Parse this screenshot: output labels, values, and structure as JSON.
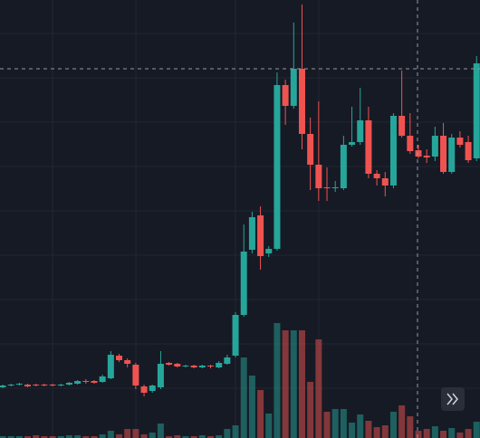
{
  "chart_data": {
    "type": "candlestick",
    "open": [
      56,
      58,
      59,
      59,
      59,
      59,
      59,
      58,
      59,
      60,
      63,
      63,
      62,
      66,
      91,
      86,
      81,
      57,
      52,
      56,
      83,
      82,
      79,
      80,
      78,
      80,
      78,
      82,
      91,
      136,
      208,
      246,
      204,
      209,
      390,
      367,
      408,
      336,
      302,
      277,
      276,
      276,
      324,
      327,
      351,
      292,
      287,
      279,
      356,
      334,
      318,
      312,
      311,
      334,
      294,
      332,
      327,
      309
    ],
    "high": [
      59,
      60,
      61,
      60,
      60,
      60,
      60,
      60,
      62,
      64,
      65,
      64,
      70,
      96,
      93,
      88,
      83,
      59,
      59,
      96,
      84,
      83,
      81,
      81,
      81,
      81,
      85,
      92,
      139,
      236,
      250,
      256,
      212,
      404,
      396,
      459,
      479,
      354,
      372,
      299,
      284,
      334,
      366,
      387,
      366,
      296,
      294,
      359,
      406,
      359,
      324,
      319,
      344,
      348,
      336,
      339,
      334,
      422
    ],
    "low": [
      55,
      57,
      58,
      56,
      57,
      57,
      57,
      57,
      58,
      59,
      60,
      60,
      61,
      65,
      84,
      78,
      54,
      46,
      50,
      54,
      80,
      78,
      78,
      77,
      77,
      77,
      77,
      81,
      89,
      134,
      204,
      186,
      200,
      207,
      346,
      364,
      319,
      274,
      262,
      262,
      272,
      274,
      322,
      324,
      287,
      279,
      267,
      276,
      332,
      314,
      309,
      304,
      306,
      292,
      292,
      321,
      304,
      306
    ],
    "close": [
      58,
      59,
      60,
      57,
      58,
      58,
      58,
      59,
      61,
      63,
      62,
      61,
      68,
      92,
      86,
      82,
      58,
      50,
      58,
      82,
      81,
      79,
      80,
      78,
      80,
      79,
      83,
      89,
      136,
      206,
      244,
      201,
      209,
      390,
      367,
      408,
      336,
      302,
      276,
      276,
      277,
      324,
      327,
      351,
      292,
      287,
      279,
      356,
      334,
      317,
      311,
      310,
      334,
      294,
      332,
      324,
      307,
      414
    ],
    "volume": [
      2,
      2,
      2,
      2,
      3,
      2,
      2,
      2,
      3,
      3,
      2,
      2,
      4,
      8,
      4,
      10,
      10,
      4,
      6,
      16,
      2,
      3,
      2,
      2,
      3,
      2,
      3,
      10,
      14,
      89,
      69,
      53,
      27,
      127,
      119,
      119,
      119,
      62,
      109,
      29,
      32,
      32,
      17,
      26,
      19,
      12,
      14,
      29,
      36,
      24,
      8,
      10,
      13,
      8,
      11,
      6,
      10,
      18
    ],
    "ylim": [
      0,
      484
    ],
    "volume_ylim": [
      0,
      484
    ],
    "up_color": "#26a69a",
    "down_color": "#ef5350",
    "grid": true
  }
}
